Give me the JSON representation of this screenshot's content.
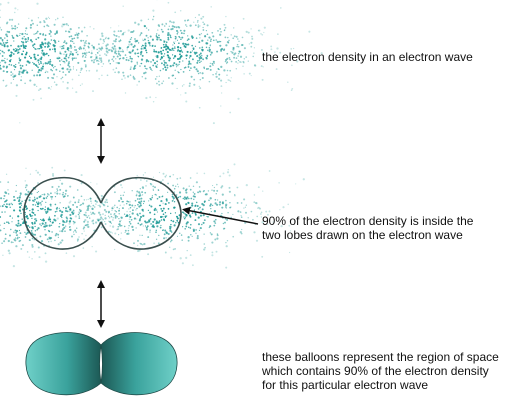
{
  "captions": {
    "density": [
      "the electron density in an electron wave"
    ],
    "lobes": [
      "90% of the electron density is inside the",
      "two lobes drawn on the electron wave"
    ],
    "balloons": [
      "these balloons represent the region of space",
      "which contains 90% of the electron density",
      "for this particular electron wave"
    ]
  },
  "colors": {
    "cloud": "#1e9a96",
    "outline": "#3a4f4e",
    "balloon_light": "#64c8c0",
    "balloon_dark": "#1e5e5a",
    "arrow": "#111111"
  }
}
